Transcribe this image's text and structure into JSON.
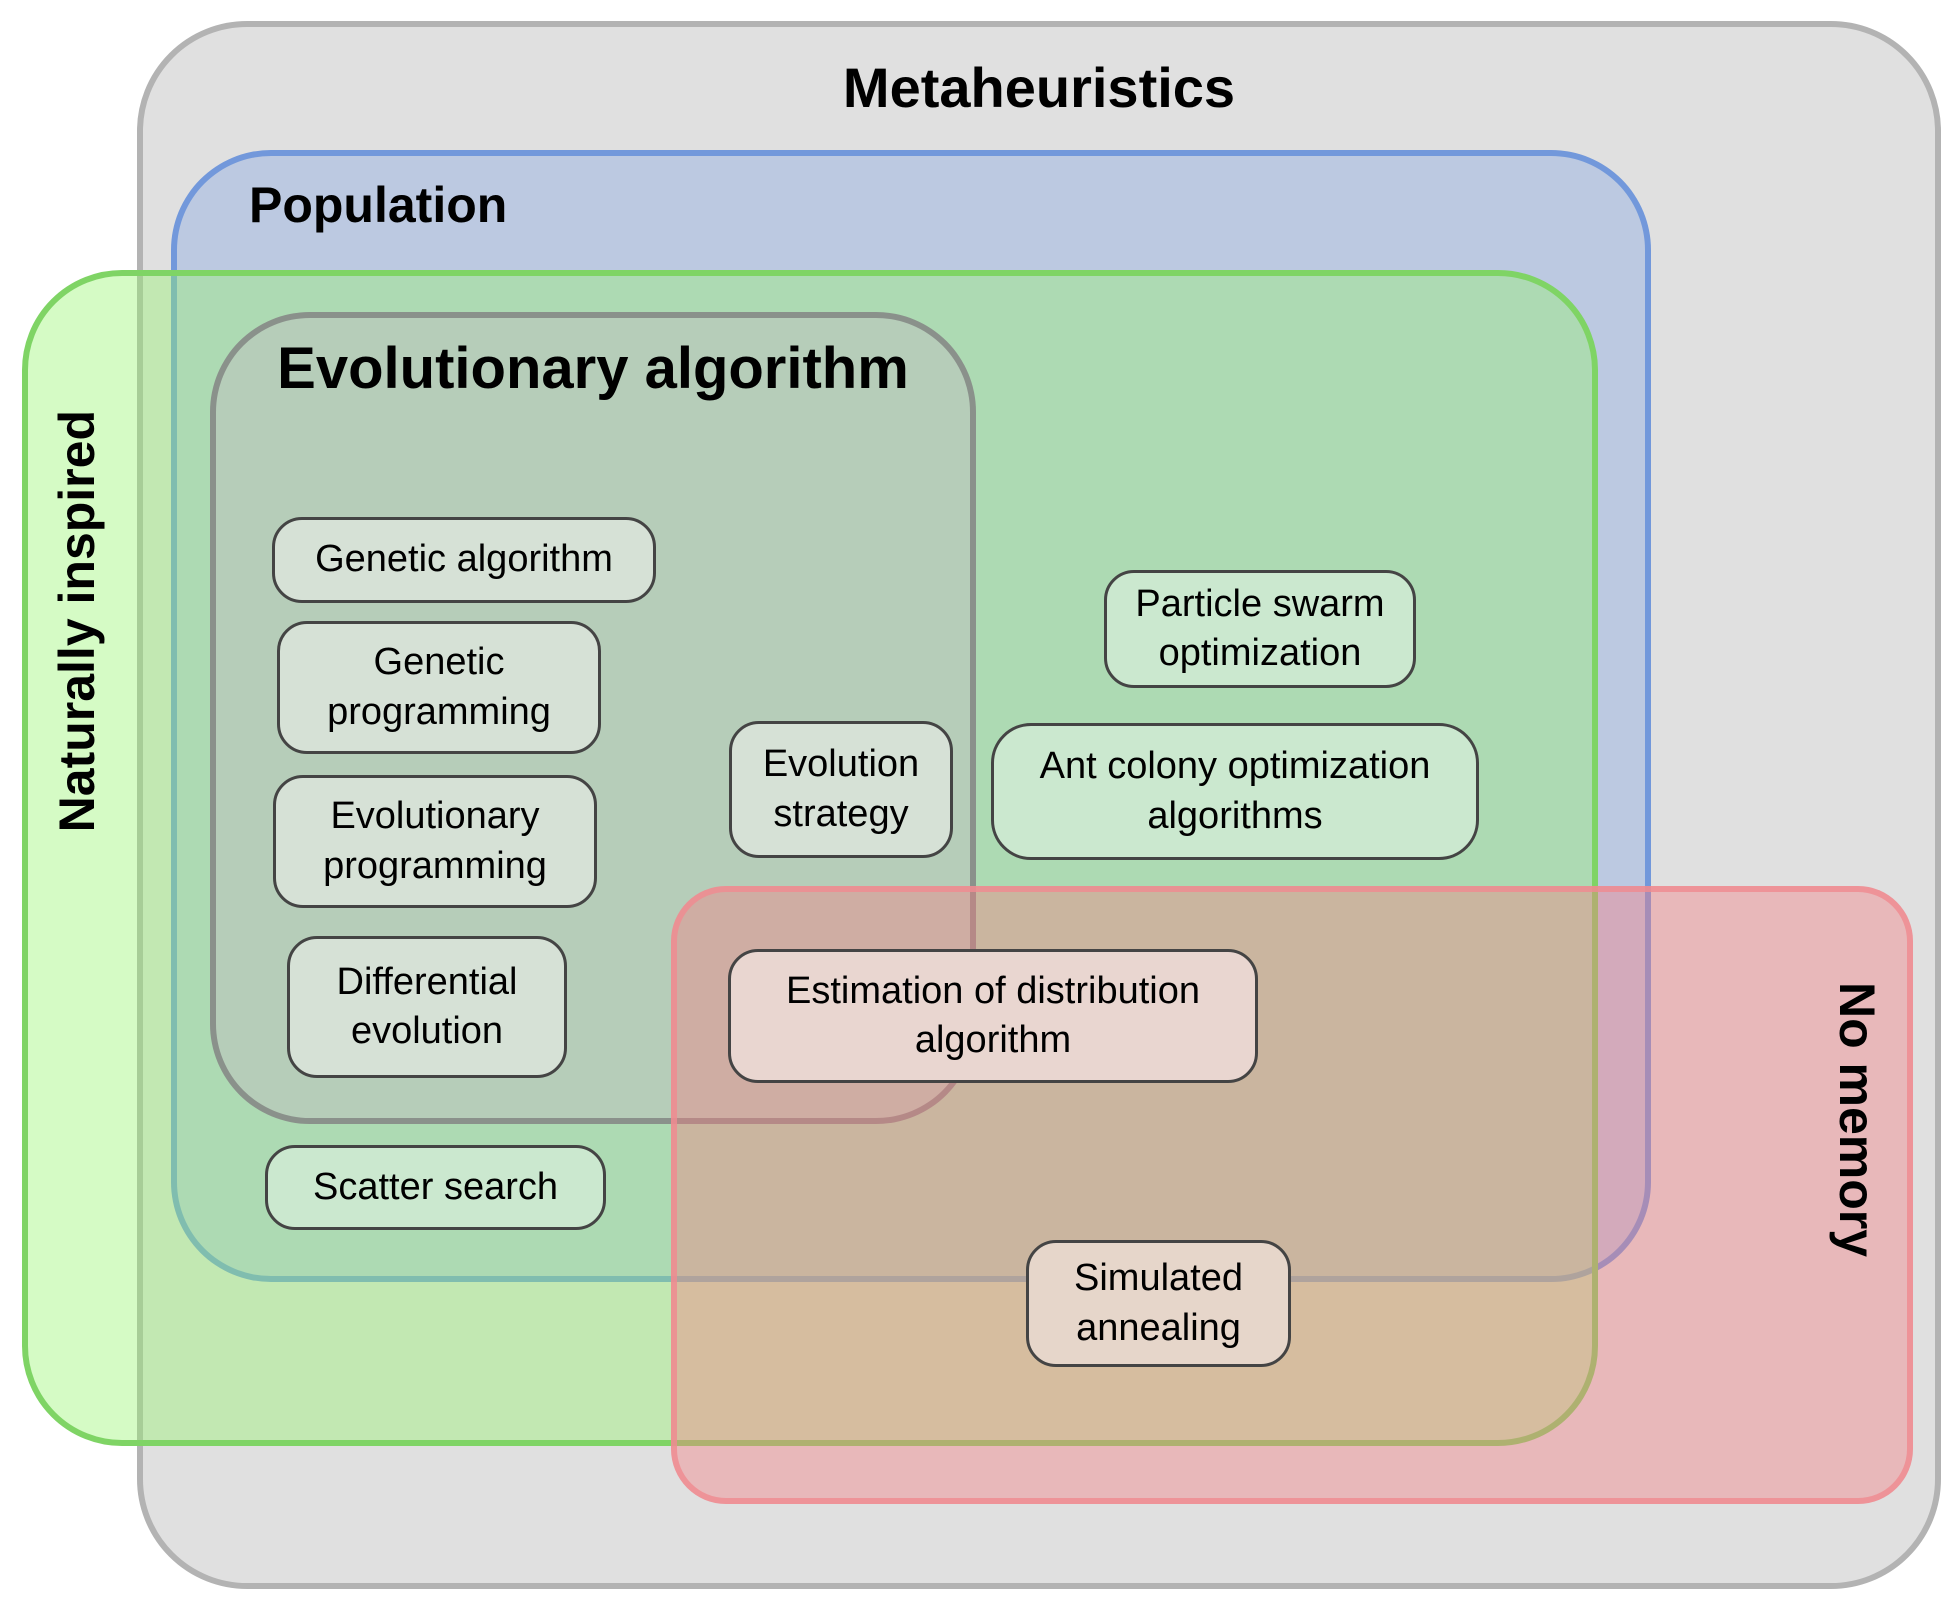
{
  "diagram": {
    "regions": {
      "metaheuristics": {
        "label": "Metaheuristics"
      },
      "population": {
        "label": "Population"
      },
      "naturally_inspired": {
        "label": "Naturally inspired"
      },
      "evolutionary_algorithm": {
        "label": "Evolutionary algorithm"
      },
      "no_memory": {
        "label": "No memory"
      }
    },
    "algorithms": {
      "genetic_algorithm": "Genetic algorithm",
      "genetic_programming": "Genetic programming",
      "evolutionary_programming": "Evolutionary programming",
      "differential_evolution": "Differential evolution",
      "evolution_strategy": "Evolution strategy",
      "particle_swarm_optimization": "Particle swarm optimization",
      "ant_colony_optimization": "Ant colony optimization algorithms",
      "estimation_of_distribution": "Estimation of distribution algorithm",
      "scatter_search": "Scatter search",
      "simulated_annealing": "Simulated annealing"
    },
    "colors": {
      "metaheuristics": "#e0e0e0",
      "population": "#98b1e1",
      "naturally_inspired": "#96f46e",
      "evolutionary_algorithm": "#c0c0c0",
      "no_memory": "#f47e82"
    }
  }
}
